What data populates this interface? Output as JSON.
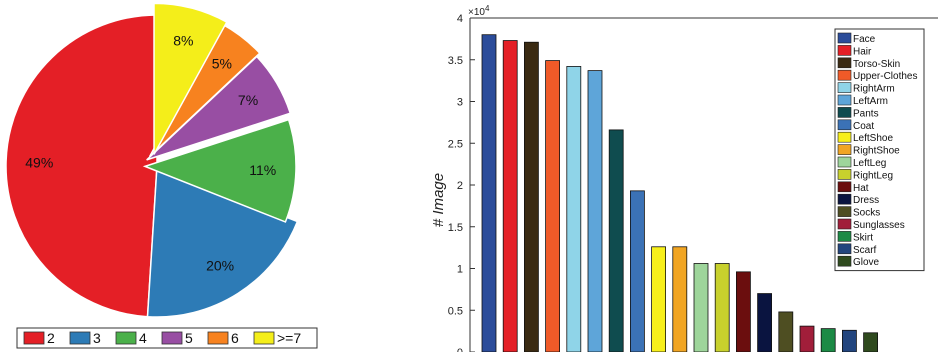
{
  "chart_data": [
    {
      "type": "pie",
      "categories": [
        "2",
        "3",
        "4",
        "5",
        "6",
        ">=7"
      ],
      "values": [
        49,
        20,
        11,
        7,
        5,
        8
      ],
      "labels": [
        "49%",
        "20%",
        "11%",
        "7%",
        "5%",
        "8%"
      ],
      "colors": [
        "#e41f26",
        "#2d7bb6",
        "#4bb04a",
        "#984ea3",
        "#f7821f",
        "#f4ee1a"
      ],
      "exploded": [
        false,
        false,
        true,
        true,
        true,
        true
      ],
      "legend_placement": "bottom"
    },
    {
      "type": "bar",
      "categories": [
        "Face",
        "Hair",
        "Torso-Skin",
        "Upper-Clothes",
        "RightArm",
        "LeftArm",
        "Pants",
        "Coat",
        "LeftShoe",
        "RightShoe",
        "LeftLeg",
        "RightLeg",
        "Hat",
        "Dress",
        "Socks",
        "Sunglasses",
        "Skirt",
        "Scarf",
        "Glove"
      ],
      "values": [
        3.8,
        3.73,
        3.71,
        3.49,
        3.42,
        3.37,
        2.66,
        1.93,
        1.26,
        1.26,
        1.06,
        1.06,
        0.96,
        0.7,
        0.48,
        0.31,
        0.28,
        0.26,
        0.23
      ],
      "colors": [
        "#2b4c9a",
        "#e41f26",
        "#3a2a12",
        "#f05a28",
        "#8fd4e8",
        "#5ea5d9",
        "#0f4c4f",
        "#3b72b6",
        "#f7ef1b",
        "#f1a523",
        "#9ed59b",
        "#c8d12d",
        "#6b0e0e",
        "#0a1440",
        "#4e4e22",
        "#a11e3a",
        "#1c8a45",
        "#22457e",
        "#2f4a1e"
      ],
      "ylabel": "# Image",
      "ylim": [
        0,
        4
      ],
      "yticks": [
        "0",
        "0.5",
        "1",
        "1.5",
        "2",
        "2.5",
        "3",
        "3.5",
        "4"
      ],
      "y_exponent_base": "×10",
      "y_exponent_power": "4",
      "grid": false,
      "legend_placement": "top-right"
    }
  ]
}
